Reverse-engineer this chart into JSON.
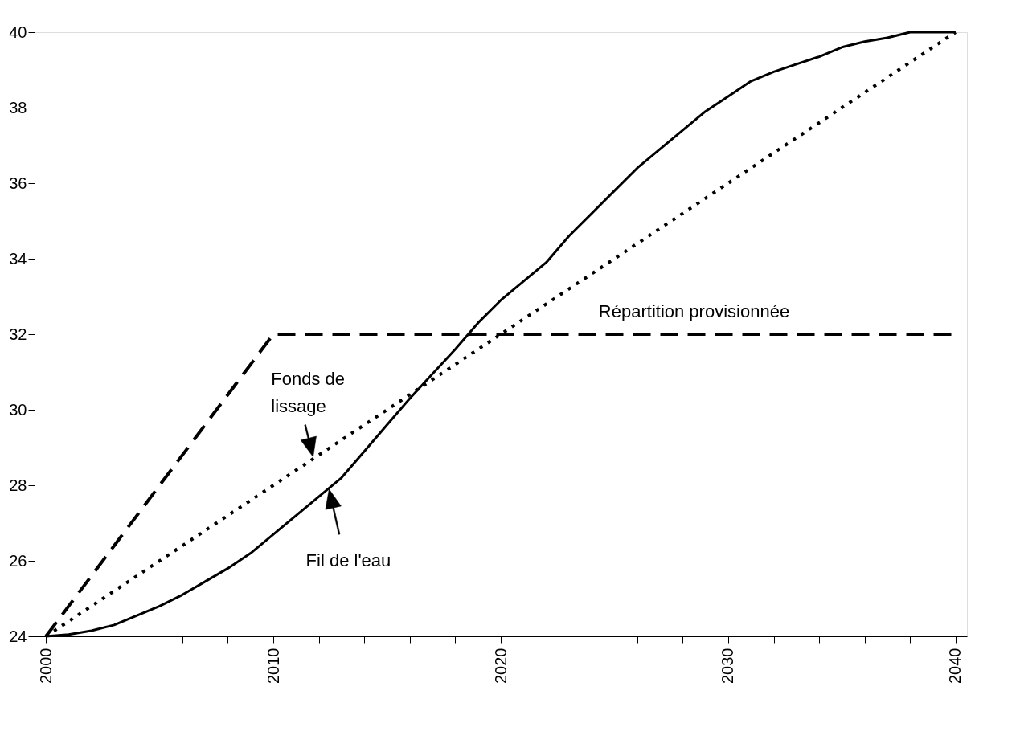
{
  "chart_data": {
    "type": "line",
    "categories": [
      "2000",
      null,
      null,
      null,
      null,
      null,
      null,
      null,
      null,
      null,
      "2010",
      null,
      null,
      null,
      null,
      null,
      null,
      null,
      null,
      null,
      "2020",
      null,
      null,
      null,
      null,
      null,
      null,
      null,
      null,
      null,
      "2030",
      null,
      null,
      null,
      null,
      null,
      null,
      null,
      null,
      null,
      "2040"
    ],
    "series": [
      {
        "name": "Fil de l'eau",
        "color": "#000000",
        "line_style": "solid",
        "values": [
          24.0,
          24.05,
          24.15,
          24.3,
          24.55,
          24.8,
          25.1,
          25.45,
          25.8,
          26.2,
          26.7,
          27.2,
          27.7,
          28.2,
          28.9,
          29.6,
          30.3,
          30.95,
          31.6,
          32.3,
          32.9,
          33.4,
          33.9,
          34.6,
          35.2,
          35.8,
          36.4,
          36.9,
          37.4,
          37.9,
          38.3,
          38.7,
          38.95,
          39.15,
          39.35,
          39.6,
          39.75,
          39.85,
          40.0,
          40.0,
          40.0
        ]
      },
      {
        "name": "Fonds de lissage",
        "color": "#000000",
        "line_style": "dotted",
        "values": [
          24.0,
          24.4,
          24.8,
          25.2,
          25.6,
          26.0,
          26.4,
          26.8,
          27.2,
          27.6,
          28.0,
          28.4,
          28.8,
          29.2,
          29.6,
          30.0,
          30.4,
          30.8,
          31.2,
          31.6,
          32.0,
          32.4,
          32.8,
          33.2,
          33.6,
          34.0,
          34.4,
          34.8,
          35.2,
          35.6,
          36.0,
          36.4,
          36.8,
          37.2,
          37.6,
          38.0,
          38.4,
          38.8,
          39.2,
          39.6,
          40.0
        ]
      },
      {
        "name": "Répartition provisionnée",
        "color": "#000000",
        "line_style": "dashed",
        "values": [
          24.0,
          24.8,
          25.6,
          26.4,
          27.2,
          28.0,
          28.8,
          29.6,
          30.4,
          31.2,
          32.0,
          32.0,
          32.0,
          32.0,
          32.0,
          32.0,
          32.0,
          32.0,
          32.0,
          32.0,
          32.0,
          32.0,
          32.0,
          32.0,
          32.0,
          32.0,
          32.0,
          32.0,
          32.0,
          32.0,
          32.0,
          32.0,
          32.0,
          32.0,
          32.0,
          32.0,
          32.0,
          32.0,
          32.0,
          32.0,
          32.0
        ]
      }
    ],
    "ylim": [
      24,
      40
    ],
    "yticks": [
      24,
      26,
      28,
      30,
      32,
      34,
      36,
      38,
      40
    ],
    "grid": false,
    "legend": false,
    "marker": "none"
  }
}
